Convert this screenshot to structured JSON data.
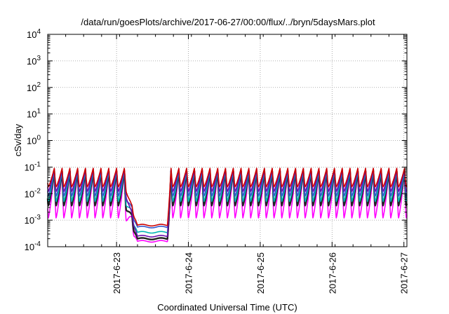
{
  "chart_data": {
    "type": "line",
    "title": "/data/run/goesPlots/archive/2017-06-27/00:00/flux/../bryn/5daysMars.plot",
    "xlabel": "Coordinated Universal Time (UTC)",
    "ylabel": "cSv/day",
    "y_scale": "log",
    "ylim": [
      0.0001,
      10000
    ],
    "yticks": [
      {
        "value": 0.0001,
        "base": "10",
        "exp": "-4"
      },
      {
        "value": 0.001,
        "base": "10",
        "exp": "-3"
      },
      {
        "value": 0.01,
        "base": "10",
        "exp": "-2"
      },
      {
        "value": 0.1,
        "base": "10",
        "exp": "-1"
      },
      {
        "value": 1,
        "base": "10",
        "exp": "0"
      },
      {
        "value": 10,
        "base": "10",
        "exp": "1"
      },
      {
        "value": 100,
        "base": "10",
        "exp": "2"
      },
      {
        "value": 1000,
        "base": "10",
        "exp": "3"
      },
      {
        "value": 10000,
        "base": "10",
        "exp": "4"
      }
    ],
    "xlim": [
      "2017-06-22 01:00",
      "2017-06-27 01:00"
    ],
    "xticks": [
      "2017-6-23",
      "2017-6-24",
      "2017-6-25",
      "2017-6-26",
      "2017-6-27"
    ],
    "grid": true,
    "series_colors": [
      "#cc0000",
      "#6a0dad",
      "#3355cc",
      "#00b3b3",
      "#ff00ff",
      "#222222"
    ],
    "series": [
      {
        "color": "#cc0000",
        "peak": 0.09,
        "trough": 0.018,
        "quiet": 0.00065
      },
      {
        "color": "#6a0dad",
        "peak": 0.085,
        "trough": 0.012,
        "quiet": 0.00025
      },
      {
        "color": "#3355cc",
        "peak": 0.08,
        "trough": 0.008,
        "quiet": 0.00055
      },
      {
        "color": "#00b3b3",
        "peak": 0.075,
        "trough": 0.005,
        "quiet": 0.00035
      },
      {
        "color": "#222222",
        "peak": 0.07,
        "trough": 0.0035,
        "quiet": 0.0002
      },
      {
        "color": "#ff00ff",
        "peak": 0.065,
        "trough": 0.0012,
        "quiet": 0.00016
      }
    ]
  }
}
